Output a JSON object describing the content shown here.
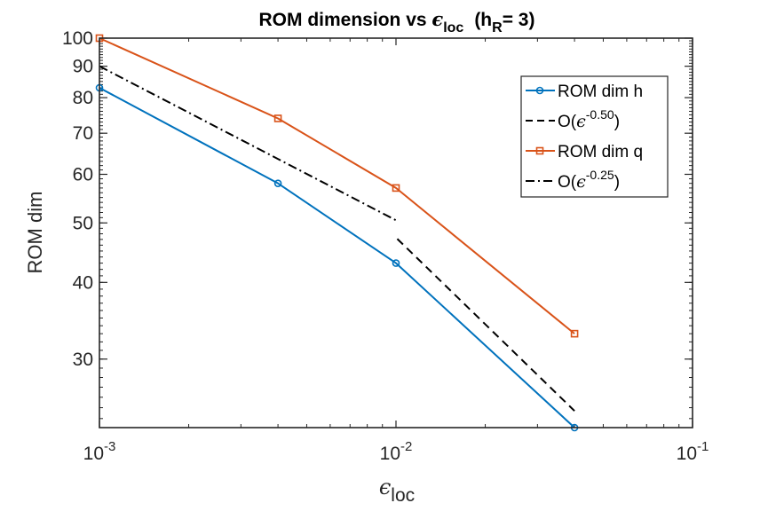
{
  "chart_data": {
    "type": "line",
    "title_main": "ROM dimension vs ",
    "title_eps": "ϵ",
    "title_eps_sub": "loc",
    "title_rest_open": "(h",
    "title_rest_sub": "R",
    "title_rest_close": "= 3)",
    "xlabel_eps": "ϵ",
    "xlabel_sub": "loc",
    "ylabel": "ROM dim",
    "x_scale": "log",
    "y_scale": "log",
    "xlim": [
      0.001,
      0.1
    ],
    "ylim": [
      23.2,
      100
    ],
    "x_ticks": [
      {
        "value": 0.001,
        "base": "10",
        "exp": "-3"
      },
      {
        "value": 0.01,
        "base": "10",
        "exp": "-2"
      },
      {
        "value": 0.1,
        "base": "10",
        "exp": "-1"
      }
    ],
    "y_ticks": [
      {
        "value": 30,
        "label": "30"
      },
      {
        "value": 40,
        "label": "40"
      },
      {
        "value": 50,
        "label": "50"
      },
      {
        "value": 60,
        "label": "60"
      },
      {
        "value": 70,
        "label": "70"
      },
      {
        "value": 80,
        "label": "80"
      },
      {
        "value": 90,
        "label": "90"
      },
      {
        "value": 100,
        "label": "100"
      }
    ],
    "series": [
      {
        "name": "ROM dim h",
        "kind": "data",
        "color": "#0072BD",
        "marker": "circle",
        "x": [
          0.001,
          0.004,
          0.01,
          0.04
        ],
        "y": [
          83,
          58,
          43,
          23.2
        ]
      },
      {
        "name": "O(ϵ^-0.50)",
        "kind": "reference",
        "color": "#000000",
        "dash": "dashed",
        "x": [
          0.0101,
          0.04
        ],
        "y": [
          47.1,
          24.7
        ]
      },
      {
        "name": "ROM dim q",
        "kind": "data",
        "color": "#D95319",
        "marker": "square",
        "x": [
          0.001,
          0.004,
          0.01,
          0.04
        ],
        "y": [
          100,
          74,
          57,
          33
        ]
      },
      {
        "name": "O(ϵ^-0.25)",
        "kind": "reference",
        "color": "#000000",
        "dash": "dashdot",
        "x": [
          0.001,
          0.01
        ],
        "y": [
          90,
          50.5
        ]
      }
    ],
    "legend": {
      "position": "top-right",
      "entries": [
        {
          "text": "ROM dim h",
          "color": "#0072BD",
          "style": "solid",
          "marker": "circle"
        },
        {
          "text_prefix": "O(",
          "eps": "ϵ",
          "exp": "-0.50",
          "text_suffix": ")",
          "color": "#000000",
          "style": "dashed"
        },
        {
          "text": "ROM dim q",
          "color": "#D95319",
          "style": "solid",
          "marker": "square"
        },
        {
          "text_prefix": "O(",
          "eps": "ϵ",
          "exp": "-0.25",
          "text_suffix": ")",
          "color": "#000000",
          "style": "dashdot"
        }
      ]
    }
  }
}
